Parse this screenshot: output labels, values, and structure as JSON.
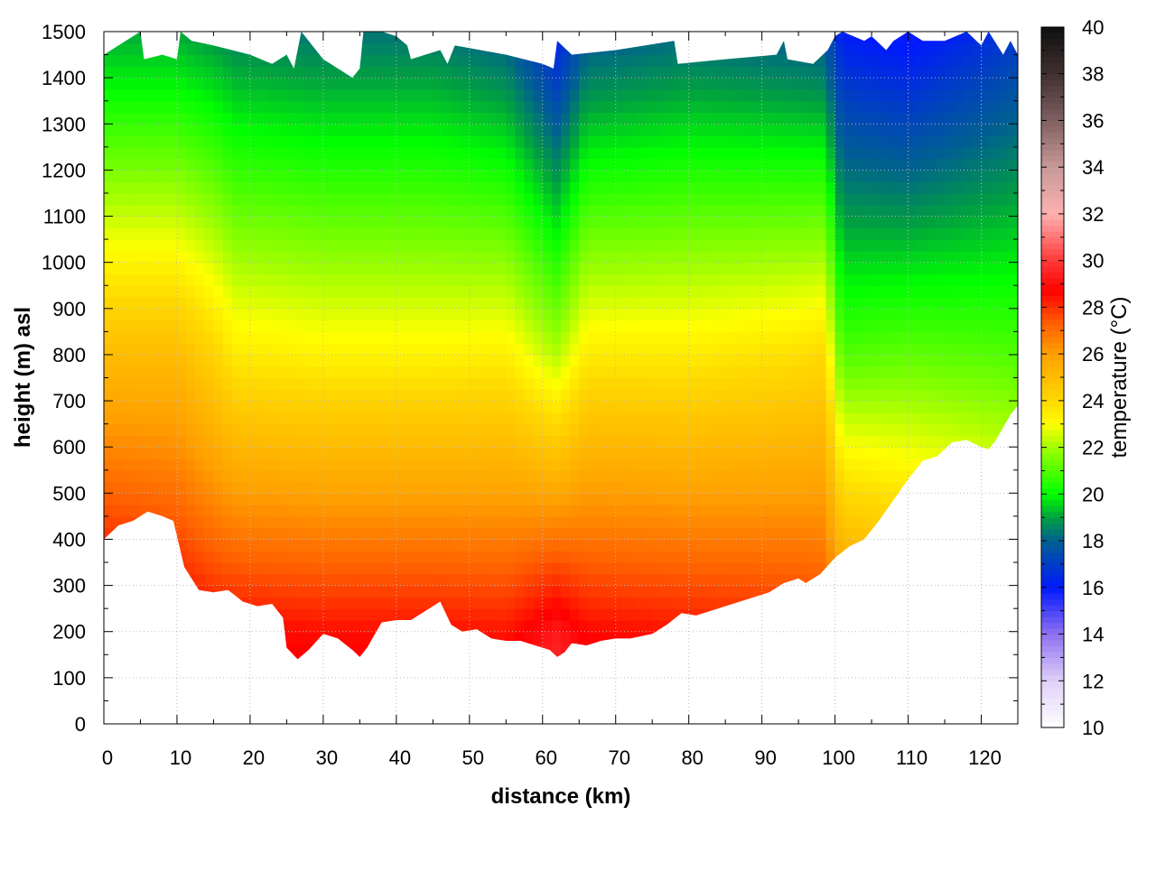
{
  "chart_data": {
    "type": "heatmap",
    "title": "",
    "xlabel": "distance (km)",
    "ylabel": "height (m) asl",
    "colorbar_label": "temperature (°C)",
    "xlim": [
      0,
      125
    ],
    "ylim": [
      0,
      1500
    ],
    "xticks": [
      0,
      10,
      20,
      30,
      40,
      50,
      60,
      70,
      80,
      90,
      100,
      110,
      120
    ],
    "yticks": [
      0,
      100,
      200,
      300,
      400,
      500,
      600,
      700,
      800,
      900,
      1000,
      1100,
      1200,
      1300,
      1400,
      1500
    ],
    "clim": [
      10,
      40
    ],
    "cticks": [
      10,
      12,
      14,
      16,
      18,
      20,
      22,
      24,
      26,
      28,
      30,
      32,
      34,
      36,
      38,
      40
    ],
    "grid": true,
    "colormap": [
      [
        10,
        "#ffffff"
      ],
      [
        12,
        "#e0d0f8"
      ],
      [
        14,
        "#9070f0"
      ],
      [
        16,
        "#0018ff"
      ],
      [
        18,
        "#006090"
      ],
      [
        19,
        "#00a040"
      ],
      [
        20,
        "#00ff00"
      ],
      [
        22,
        "#a0ff00"
      ],
      [
        23,
        "#ffff00"
      ],
      [
        24,
        "#ffd800"
      ],
      [
        26,
        "#ffa000"
      ],
      [
        27.3,
        "#ff6000"
      ],
      [
        28.7,
        "#ff0000"
      ],
      [
        30,
        "#ff3838"
      ],
      [
        32,
        "#ffb0b0"
      ],
      [
        34,
        "#c89898"
      ],
      [
        36,
        "#806060"
      ],
      [
        38,
        "#403030"
      ],
      [
        40,
        "#101010"
      ]
    ],
    "terrain_profile": {
      "x_km": [
        0,
        2,
        4,
        6,
        8,
        9.5,
        11,
        13,
        15,
        17,
        19,
        21,
        23,
        24.5,
        25,
        26.5,
        28,
        30,
        32,
        34,
        35,
        36,
        38,
        40,
        42,
        44,
        46,
        47.5,
        49,
        51,
        53,
        55,
        57,
        59,
        61,
        62,
        63,
        64,
        66,
        68,
        70,
        72,
        75,
        77,
        79,
        81,
        83,
        85,
        87,
        89,
        91,
        93,
        95,
        96,
        98,
        100,
        102,
        104,
        106,
        108,
        110,
        112,
        114,
        116,
        118,
        120,
        121,
        122,
        124,
        125
      ],
      "height_m": [
        400,
        430,
        440,
        460,
        450,
        440,
        340,
        290,
        285,
        290,
        265,
        255,
        260,
        230,
        165,
        140,
        160,
        195,
        185,
        160,
        145,
        165,
        220,
        225,
        225,
        245,
        265,
        215,
        200,
        205,
        185,
        180,
        180,
        170,
        160,
        145,
        155,
        175,
        170,
        180,
        185,
        185,
        195,
        215,
        240,
        235,
        245,
        255,
        265,
        275,
        285,
        305,
        315,
        305,
        325,
        360,
        385,
        400,
        440,
        485,
        530,
        570,
        580,
        610,
        615,
        600,
        595,
        615,
        670,
        690
      ]
    },
    "data_top": {
      "x_km": [
        0,
        3,
        5,
        5.5,
        8,
        10,
        10.5,
        12,
        15,
        20,
        23,
        25,
        26,
        27,
        30,
        34,
        35,
        35.5,
        38,
        40,
        41.5,
        42,
        46,
        47,
        48,
        55,
        60,
        61.5,
        62,
        64,
        70,
        78,
        78.5,
        85,
        92,
        93,
        93.5,
        97,
        99,
        100,
        101,
        104,
        105,
        107,
        108,
        110,
        112,
        115,
        118,
        120,
        121,
        123,
        124,
        125
      ],
      "height_m": [
        1450,
        1480,
        1500,
        1440,
        1450,
        1440,
        1500,
        1480,
        1470,
        1450,
        1430,
        1450,
        1420,
        1500,
        1440,
        1400,
        1420,
        1500,
        1500,
        1490,
        1470,
        1440,
        1460,
        1430,
        1470,
        1450,
        1430,
        1420,
        1480,
        1450,
        1460,
        1480,
        1430,
        1440,
        1450,
        1480,
        1440,
        1430,
        1460,
        1490,
        1500,
        1480,
        1490,
        1460,
        1480,
        1500,
        1480,
        1480,
        1500,
        1470,
        1500,
        1450,
        1480,
        1450
      ]
    },
    "temperature_profiles": {
      "levels_m": [
        200,
        800,
        1400
      ],
      "columns": [
        {
          "x_km": 0,
          "temp_c": [
            29.5,
            25.0,
            19.8
          ]
        },
        {
          "x_km": 10,
          "temp_c": [
            29.0,
            25.0,
            19.8
          ]
        },
        {
          "x_km": 15,
          "temp_c": [
            28.6,
            24.2,
            19.5
          ]
        },
        {
          "x_km": 18,
          "temp_c": [
            28.6,
            23.5,
            19.2
          ]
        },
        {
          "x_km": 30,
          "temp_c": [
            28.5,
            23.3,
            19.0
          ]
        },
        {
          "x_km": 45,
          "temp_c": [
            28.5,
            23.3,
            19.0
          ]
        },
        {
          "x_km": 55,
          "temp_c": [
            28.4,
            23.4,
            18.6
          ]
        },
        {
          "x_km": 62,
          "temp_c": [
            29.3,
            22.2,
            17.0
          ]
        },
        {
          "x_km": 66,
          "temp_c": [
            28.6,
            23.5,
            18.5
          ]
        },
        {
          "x_km": 80,
          "temp_c": [
            28.4,
            23.5,
            18.8
          ]
        },
        {
          "x_km": 95,
          "temp_c": [
            28.2,
            23.8,
            18.6
          ]
        },
        {
          "x_km": 98.5,
          "temp_c": [
            28.0,
            24.0,
            18.5
          ]
        },
        {
          "x_km": 101,
          "temp_c": [
            27.0,
            21.0,
            16.8
          ]
        },
        {
          "x_km": 110,
          "temp_c": [
            26.0,
            21.2,
            16.5
          ]
        },
        {
          "x_km": 125,
          "temp_c": [
            25.0,
            21.0,
            17.5
          ]
        }
      ]
    }
  }
}
